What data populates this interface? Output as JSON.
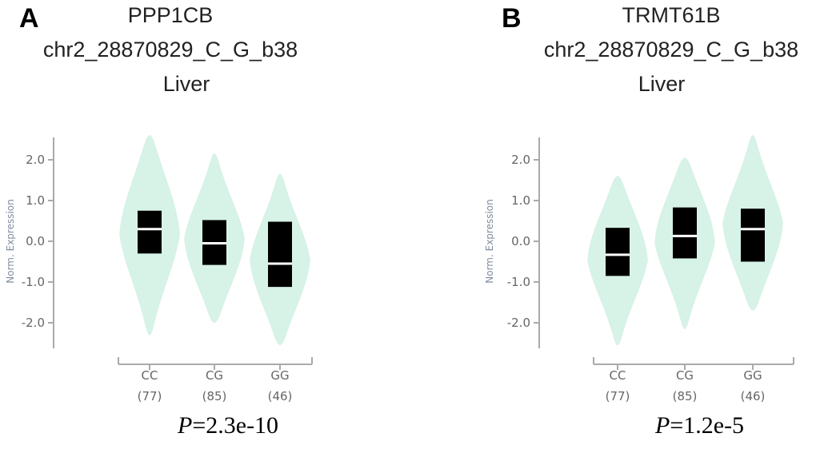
{
  "panels": [
    {
      "letter": "A",
      "gene": "PPP1CB",
      "variant": "chr2_28870829_C_G_b38",
      "tissue": "Liver",
      "p_label": "P",
      "p_value": "=2.3e-10"
    },
    {
      "letter": "B",
      "gene": "TRMT61B",
      "variant": "chr2_28870829_C_G_b38",
      "tissue": "Liver",
      "p_label": "P",
      "p_value": "=1.2e-5"
    }
  ],
  "colors": {
    "violin": "#d7f2e6",
    "box": "#000000",
    "median": "#ffffff",
    "axis": "#aaaaaa",
    "axis_text": "#666666",
    "ylabel_text": "#7f8c9d"
  },
  "chart_data": [
    {
      "type": "violin",
      "title": "PPP1CB chr2_28870829_C_G_b38 Liver",
      "ylabel": "Norm. Expression",
      "yticks": [
        "2.0",
        "1.0",
        "0.0",
        "-1.0",
        "-2.0"
      ],
      "ytick_values": [
        2.0,
        1.0,
        0.0,
        -1.0,
        -2.0
      ],
      "ylim": [
        -2.6,
        2.6
      ],
      "categories": [
        "CC",
        "CG",
        "GG"
      ],
      "counts": [
        "(77)",
        "(85)",
        "(46)"
      ],
      "groups": [
        {
          "genotype": "CC",
          "n": 77,
          "q1": -0.3,
          "median": 0.3,
          "q3": 0.75,
          "min": -2.3,
          "max": 2.6
        },
        {
          "genotype": "CG",
          "n": 85,
          "q1": -0.58,
          "median": -0.05,
          "q3": 0.52,
          "min": -2.0,
          "max": 2.15
        },
        {
          "genotype": "GG",
          "n": 46,
          "q1": -1.12,
          "median": -0.55,
          "q3": 0.48,
          "min": -2.55,
          "max": 1.65
        }
      ],
      "p_value": "2.3e-10"
    },
    {
      "type": "violin",
      "title": "TRMT61B chr2_28870829_C_G_b38 Liver",
      "ylabel": "Norm. Expression",
      "yticks": [
        "2.0",
        "1.0",
        "0.0",
        "-1.0",
        "-2.0"
      ],
      "ytick_values": [
        2.0,
        1.0,
        0.0,
        -1.0,
        -2.0
      ],
      "ylim": [
        -2.6,
        2.6
      ],
      "categories": [
        "CC",
        "CG",
        "GG"
      ],
      "counts": [
        "(77)",
        "(85)",
        "(46)"
      ],
      "groups": [
        {
          "genotype": "CC",
          "n": 77,
          "q1": -0.85,
          "median": -0.33,
          "q3": 0.33,
          "min": -2.55,
          "max": 1.6
        },
        {
          "genotype": "CG",
          "n": 85,
          "q1": -0.42,
          "median": 0.13,
          "q3": 0.83,
          "min": -2.15,
          "max": 2.05
        },
        {
          "genotype": "GG",
          "n": 46,
          "q1": -0.5,
          "median": 0.3,
          "q3": 0.8,
          "min": -1.7,
          "max": 2.6
        }
      ],
      "p_value": "1.2e-5"
    }
  ]
}
